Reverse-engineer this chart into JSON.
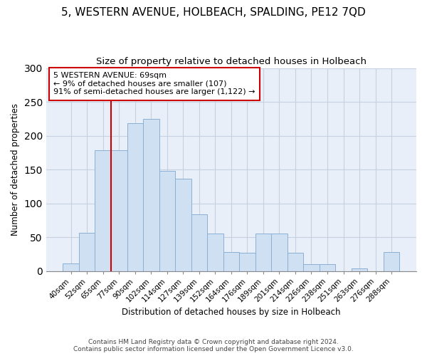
{
  "title": "5, WESTERN AVENUE, HOLBEACH, SPALDING, PE12 7QD",
  "subtitle": "Size of property relative to detached houses in Holbeach",
  "xlabel": "Distribution of detached houses by size in Holbeach",
  "ylabel": "Number of detached properties",
  "bar_labels": [
    "40sqm",
    "52sqm",
    "65sqm",
    "77sqm",
    "90sqm",
    "102sqm",
    "114sqm",
    "127sqm",
    "139sqm",
    "152sqm",
    "164sqm",
    "176sqm",
    "189sqm",
    "201sqm",
    "214sqm",
    "226sqm",
    "238sqm",
    "251sqm",
    "263sqm",
    "276sqm",
    "288sqm"
  ],
  "bar_heights": [
    11,
    56,
    178,
    178,
    218,
    225,
    148,
    136,
    84,
    55,
    28,
    27,
    55,
    55,
    27,
    10,
    10,
    0,
    4,
    0,
    28
  ],
  "bar_color": "#cfe0f3",
  "bar_edge_color": "#8ab0d4",
  "vline_x_idx": 2,
  "vline_color": "#cc0000",
  "annotation_text": "5 WESTERN AVENUE: 69sqm\n← 9% of detached houses are smaller (107)\n91% of semi-detached houses are larger (1,122) →",
  "annotation_box_color": "#ffffff",
  "annotation_box_edge": "#cc0000",
  "ylim": [
    0,
    300
  ],
  "yticks": [
    0,
    50,
    100,
    150,
    200,
    250,
    300
  ],
  "footer_line1": "Contains HM Land Registry data © Crown copyright and database right 2024.",
  "footer_line2": "Contains public sector information licensed under the Open Government Licence v3.0.",
  "bg_color": "#ffffff",
  "plot_bg_color": "#e8eff8",
  "grid_color": "#c5d0e0",
  "title_fontsize": 11,
  "subtitle_fontsize": 9.5
}
